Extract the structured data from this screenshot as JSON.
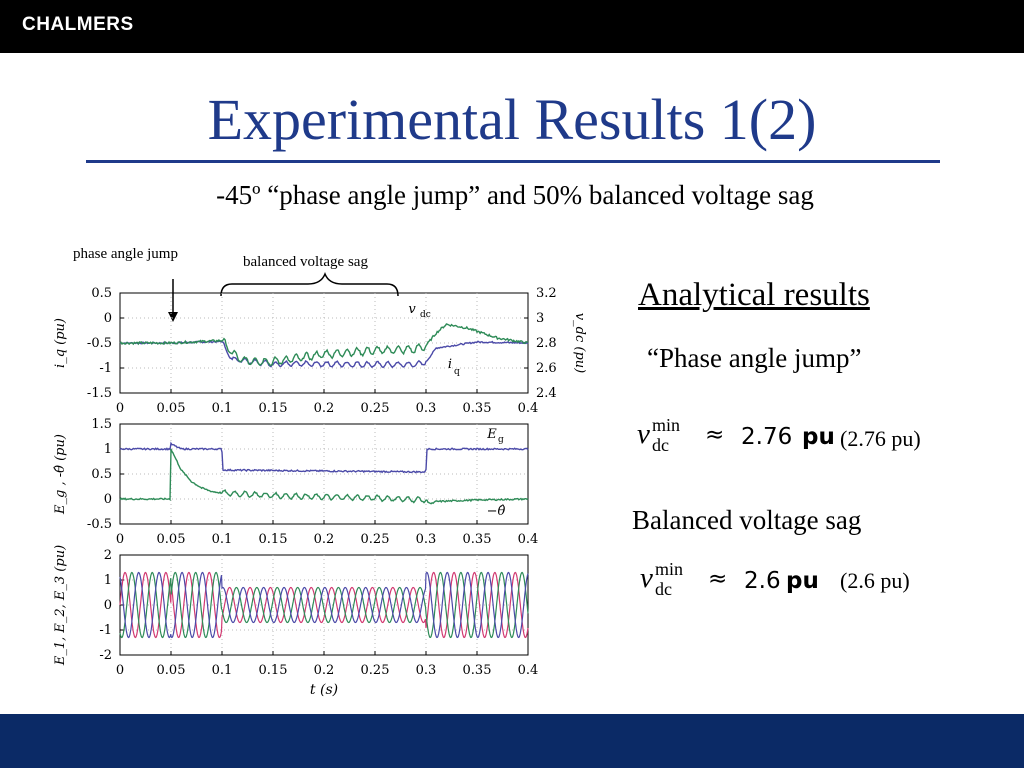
{
  "header": {
    "logo": "CHALMERS"
  },
  "slide": {
    "title": "Experimental Results 1(2)",
    "subtitle": "-45º “phase angle jump” and 50% balanced voltage sag",
    "annotation_jump": "phase angle jump",
    "annotation_sag": "balanced voltage sag",
    "analytical_heading": "Analytical results",
    "phase_jump_heading": "“Phase angle jump”",
    "sag_heading": "Balanced voltage sag",
    "formula1": {
      "var": "v",
      "sub": "dc",
      "sup": "min",
      "rel": "≈",
      "value": "2.76",
      "unit": "pu",
      "paren": "(2.76 pu)"
    },
    "formula2": {
      "var": "v",
      "sub": "dc",
      "sup": "min",
      "rel": "≈",
      "value": "2.6",
      "unit": "pu",
      "paren": "(2.6 pu)"
    }
  },
  "colors": {
    "blue_series": "#4b4aa8",
    "green_series": "#2e8b57",
    "red_series": "#d23a72",
    "title_blue": "#1f3a8a",
    "footer_blue": "#0b2a66"
  },
  "chart_data": [
    {
      "type": "line",
      "panel": "top",
      "xlim": [
        0,
        0.4
      ],
      "x_ticks": [
        "0",
        "0.05",
        "0.1",
        "0.15",
        "0.2",
        "0.25",
        "0.3",
        "0.35",
        "0.4"
      ],
      "ylim": [
        -1.5,
        0.5
      ],
      "y_ticks": [
        "0.5",
        "0",
        "-0.5",
        "-1",
        "-1.5"
      ],
      "ylabel": "i_q (pu)",
      "y2lim": [
        2.4,
        3.2
      ],
      "y2_ticks": [
        "3.2",
        "3",
        "2.8",
        "2.6",
        "2.4"
      ],
      "y2label": "v_dc (pu)",
      "series": [
        {
          "name": "i_q",
          "axis": "left",
          "x": [
            0,
            0.05,
            0.1,
            0.103,
            0.11,
            0.15,
            0.2,
            0.25,
            0.29,
            0.3,
            0.31,
            0.35,
            0.4
          ],
          "values": [
            -0.5,
            -0.5,
            -0.47,
            -0.62,
            -0.82,
            -0.92,
            -0.92,
            -0.93,
            -0.93,
            -0.88,
            -0.6,
            -0.48,
            -0.5
          ]
        },
        {
          "name": "v_dc",
          "axis": "right",
          "x": [
            0,
            0.05,
            0.1,
            0.11,
            0.12,
            0.15,
            0.2,
            0.25,
            0.29,
            0.3,
            0.31,
            0.32,
            0.34,
            0.37,
            0.4
          ],
          "values": [
            2.8,
            2.8,
            2.82,
            2.72,
            2.66,
            2.65,
            2.71,
            2.74,
            2.75,
            2.78,
            2.88,
            2.95,
            2.92,
            2.84,
            2.8
          ]
        }
      ]
    },
    {
      "type": "line",
      "panel": "middle",
      "xlim": [
        0,
        0.4
      ],
      "x_ticks": [
        "0",
        "0.05",
        "0.1",
        "0.15",
        "0.2",
        "0.25",
        "0.3",
        "0.35",
        "0.4"
      ],
      "ylim": [
        -0.5,
        1.5
      ],
      "y_ticks": [
        "1.5",
        "1",
        "0.5",
        "0",
        "-0.5"
      ],
      "ylabel": "E_g , -θ̂ (pu)",
      "series": [
        {
          "name": "E_g",
          "x": [
            0,
            0.049,
            0.05,
            0.055,
            0.06,
            0.099,
            0.1,
            0.101,
            0.15,
            0.2,
            0.25,
            0.299,
            0.3,
            0.301,
            0.35,
            0.4
          ],
          "values": [
            1.0,
            1.0,
            1.1,
            1.05,
            1.0,
            1.0,
            0.95,
            0.58,
            0.57,
            0.56,
            0.55,
            0.54,
            0.6,
            1.0,
            1.0,
            1.0
          ]
        },
        {
          "name": "-θ̂",
          "x": [
            0,
            0.049,
            0.05,
            0.06,
            0.07,
            0.08,
            0.09,
            0.1,
            0.12,
            0.15,
            0.2,
            0.25,
            0.3,
            0.305,
            0.31,
            0.35,
            0.4
          ],
          "values": [
            0,
            0,
            1.0,
            0.58,
            0.35,
            0.22,
            0.15,
            0.12,
            0.1,
            0.07,
            0.04,
            0.02,
            -0.02,
            -0.1,
            -0.05,
            -0.02,
            0
          ]
        }
      ]
    },
    {
      "type": "line",
      "panel": "bottom",
      "xlim": [
        0,
        0.4
      ],
      "x_ticks": [
        "0",
        "0.05",
        "0.1",
        "0.15",
        "0.2",
        "0.25",
        "0.3",
        "0.35",
        "0.4"
      ],
      "ylim": [
        -2,
        2
      ],
      "y_ticks": [
        "2",
        "1",
        "0",
        "-1",
        "-2"
      ],
      "ylabel": "E_1, E_2, E_3 (pu)",
      "xlabel": "t (s)",
      "frequency_hz": 50,
      "amplitude_segments": [
        {
          "x": [
            0,
            0.1
          ],
          "amplitude": 1.3
        },
        {
          "x": [
            0.1,
            0.3
          ],
          "amplitude": 0.7
        },
        {
          "x": [
            0.3,
            0.4
          ],
          "amplitude": 1.3
        }
      ],
      "phase_jump_at": 0.05,
      "phase_jump_deg": -45,
      "series": [
        {
          "name": "E_1",
          "phase_deg": 0
        },
        {
          "name": "E_2",
          "phase_deg": -120
        },
        {
          "name": "E_3",
          "phase_deg": 120
        }
      ]
    }
  ]
}
